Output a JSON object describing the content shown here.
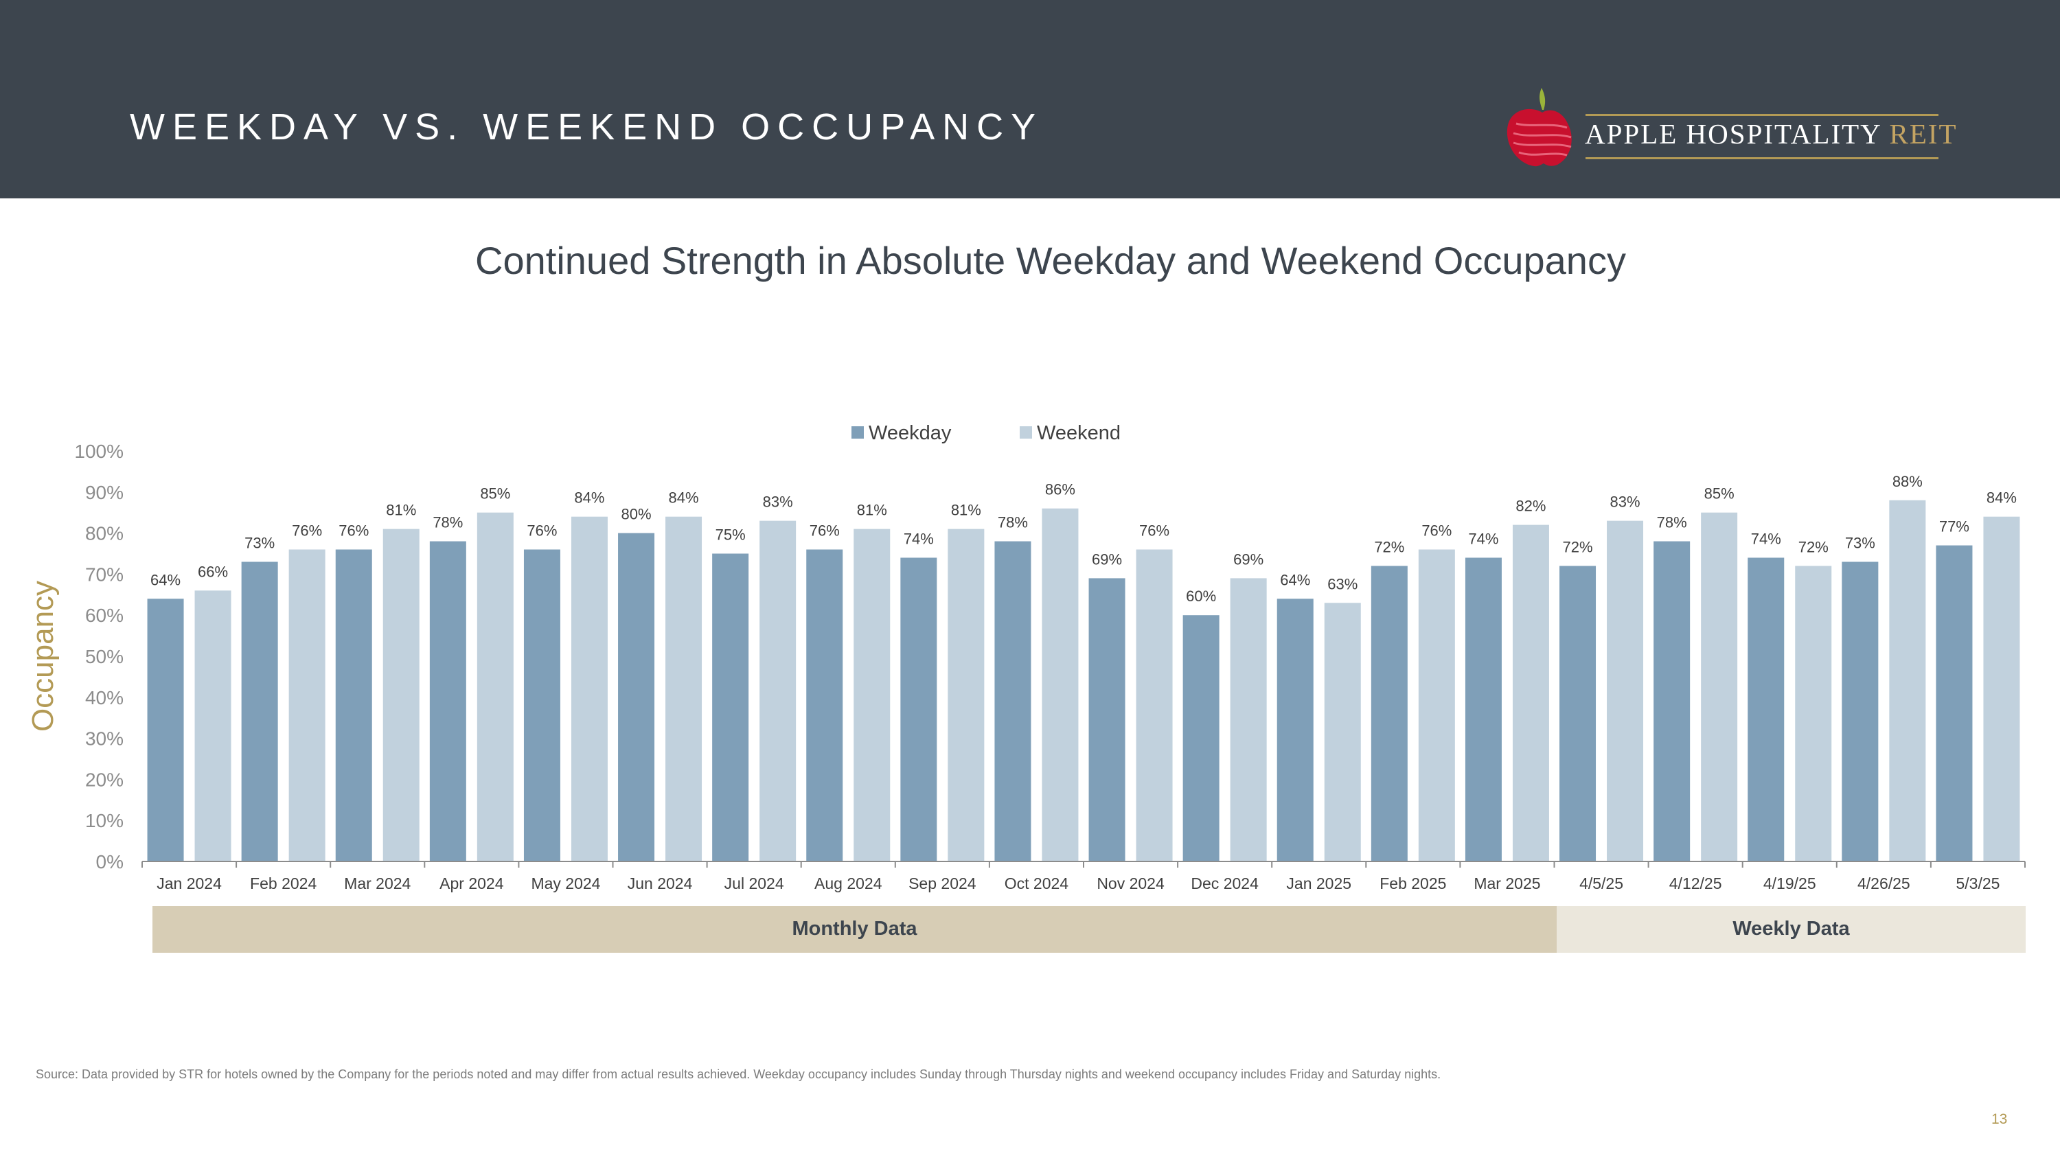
{
  "header": {
    "title": "WEEKDAY VS. WEEKEND OCCUPANCY"
  },
  "logo": {
    "name_main": "APPLE HOSPITALITY ",
    "name_accent": "REIT"
  },
  "colors": {
    "header_bg": "#3d454e",
    "weekday": "#7f9fb8",
    "weekend": "#c1d1dd",
    "gold": "#b39a55",
    "monthly_band": "#d7cdb5",
    "weekly_band": "#ebe7dc"
  },
  "subtitle": "Continued Strength in Absolute Weekday and Weekend Occupancy",
  "chart_data": {
    "type": "bar",
    "title": "Continued Strength in Absolute Weekday and Weekend Occupancy",
    "xlabel": "",
    "ylabel": "Occupancy",
    "ylim": [
      0,
      100
    ],
    "yticks": [
      "0%",
      "10%",
      "20%",
      "30%",
      "40%",
      "50%",
      "60%",
      "70%",
      "80%",
      "90%",
      "100%"
    ],
    "grid": false,
    "legend_position": "top-center",
    "categories": [
      "Jan 2024",
      "Feb 2024",
      "Mar 2024",
      "Apr 2024",
      "May 2024",
      "Jun 2024",
      "Jul 2024",
      "Aug 2024",
      "Sep 2024",
      "Oct 2024",
      "Nov 2024",
      "Dec 2024",
      "Jan 2025",
      "Feb 2025",
      "Mar 2025",
      "4/5/25",
      "4/12/25",
      "4/19/25",
      "4/26/25",
      "5/3/25"
    ],
    "series": [
      {
        "name": "Weekday",
        "values": [
          64,
          73,
          76,
          78,
          76,
          80,
          75,
          76,
          74,
          78,
          69,
          60,
          64,
          72,
          74,
          72,
          78,
          74,
          73,
          77
        ],
        "labels": [
          "64%",
          "73%",
          "76%",
          "78%",
          "76%",
          "80%",
          "75%",
          "76%",
          "74%",
          "78%",
          "69%",
          "60%",
          "64%",
          "72%",
          "74%",
          "72%",
          "78%",
          "74%",
          "73%",
          "77%"
        ]
      },
      {
        "name": "Weekend",
        "values": [
          66,
          76,
          81,
          85,
          84,
          84,
          83,
          81,
          81,
          86,
          76,
          69,
          63,
          76,
          82,
          83,
          85,
          72,
          88,
          84
        ],
        "labels": [
          "66%",
          "76%",
          "81%",
          "85%",
          "84%",
          "84%",
          "83%",
          "81%",
          "81%",
          "86%",
          "76%",
          "69%",
          "63%",
          "76%",
          "82%",
          "83%",
          "85%",
          "72%",
          "88%",
          "84%"
        ]
      }
    ],
    "groups": [
      {
        "label": "Monthly Data",
        "categories": 15
      },
      {
        "label": "Weekly Data",
        "categories": 5
      }
    ]
  },
  "footnote": "Source:  Data provided by STR for hotels owned by the Company for the periods noted and may differ from actual results achieved. Weekday occupancy includes Sunday through Thursday nights and weekend occupancy includes Friday and Saturday nights.",
  "page_number": "13"
}
